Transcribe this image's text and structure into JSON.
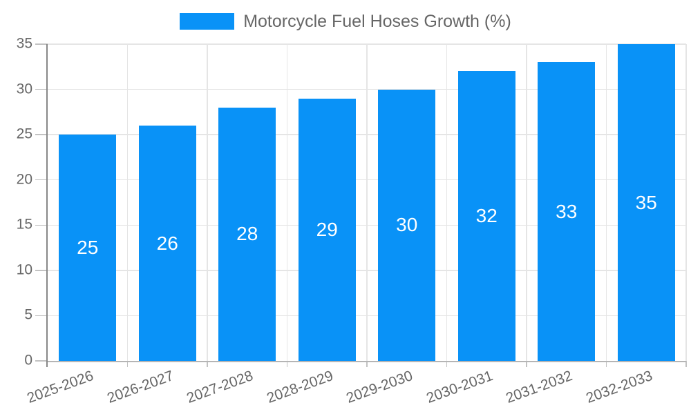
{
  "chart_data": {
    "type": "bar",
    "title": "Motorcycle Fuel Hoses Growth (%)",
    "categories": [
      "2025-2026",
      "2026-2027",
      "2027-2028",
      "2028-2029",
      "2029-2030",
      "2030-2031",
      "2031-2032",
      "2032-2033"
    ],
    "values": [
      25,
      26,
      28,
      29,
      30,
      32,
      33,
      35
    ],
    "xlabel": "",
    "ylabel": "",
    "ylim": [
      0,
      35
    ],
    "yticks": [
      0,
      5,
      10,
      15,
      20,
      25,
      30,
      35
    ],
    "grid": true,
    "legend_position": "top-center",
    "x_tick_rotation_deg": -20,
    "colors": {
      "bar": "#0992f7",
      "bar_label": "#ffffff",
      "tick_label": "#666666",
      "legend_label": "#666666",
      "grid": "#e5e5e5",
      "axis_y": "#878787",
      "axis_x": "#b5b5b5",
      "tick": "#c2c2c2",
      "background": "#ffffff"
    }
  }
}
